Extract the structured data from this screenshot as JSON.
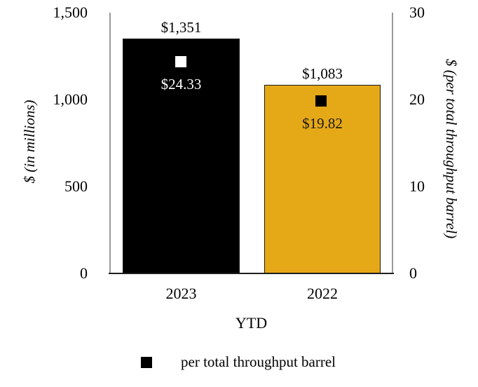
{
  "chart_data": {
    "type": "bar",
    "categories": [
      "2023",
      "2022"
    ],
    "xlabel": "YTD",
    "series": [
      {
        "name": "$ (in millions)",
        "render": "bar",
        "axis": "left",
        "values": [
          1351,
          1083
        ],
        "value_labels": [
          "$1,351",
          "$1,083"
        ],
        "bar_colors": [
          "#000000",
          "#e5a817"
        ]
      },
      {
        "name": "per total throughput barrel",
        "render": "square-marker",
        "axis": "right",
        "values": [
          24.33,
          19.82
        ],
        "value_labels": [
          "$24.33",
          "$19.82"
        ],
        "marker_colors": [
          "#ffffff",
          "#000000"
        ],
        "value_label_colors": [
          "#ffffff",
          "#1a1a1a"
        ]
      }
    ],
    "left_axis": {
      "label": "$ (in millions)",
      "range": [
        0,
        1500
      ],
      "tick_values": [
        1500,
        1000,
        500,
        0
      ],
      "tick_labels": [
        "1,500",
        "1,000",
        "500",
        "0"
      ]
    },
    "right_axis": {
      "label": "$ (per total throughput barrel)",
      "range": [
        0,
        30
      ],
      "tick_values": [
        30,
        20,
        10,
        0
      ],
      "tick_labels": [
        "30",
        "20",
        "10",
        "0"
      ]
    },
    "legend": {
      "position": "bottom",
      "entries": [
        {
          "swatch_color": "#000000",
          "label": "per total throughput barrel"
        }
      ]
    },
    "grid": false,
    "background": "#ffffff",
    "axis_line_color": "#9a9a9a",
    "baseline_color": "#1f1f1f"
  }
}
